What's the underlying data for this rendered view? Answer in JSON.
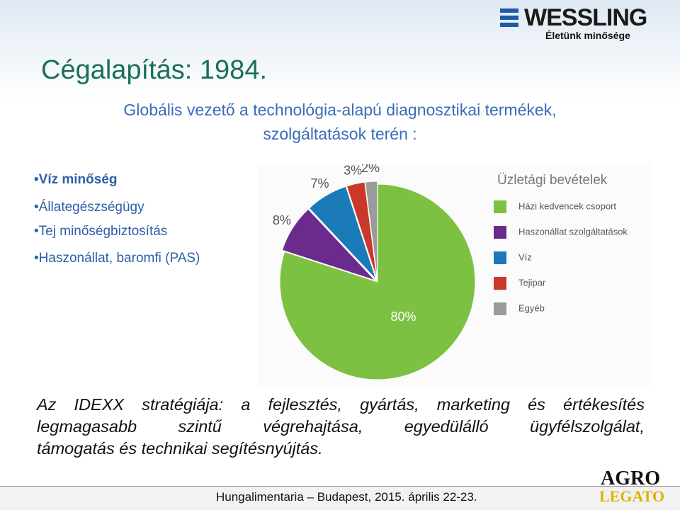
{
  "logo": {
    "brand": "WESSLING",
    "tagline": "Életünk minősége"
  },
  "header": {
    "title": "Cégalapítás: 1984.",
    "subtitle": [
      "Globális vezető a technológia-alapú diagnosztikai termékek,",
      "szolgáltatások terén :"
    ]
  },
  "bullets": [
    "•Víz minőség",
    "•Állategészségügy",
    "•Tej minőségbiztosítás",
    "•Haszonállat, baromfi (PAS)"
  ],
  "chart_data": {
    "type": "pie",
    "title": "Üzletági bevételek",
    "categories": [
      "Házi kedvencek csoport",
      "Haszonállat szolgáltatások",
      "Víz",
      "Tejipar",
      "Egyéb"
    ],
    "values": [
      80,
      8,
      7,
      3,
      2
    ],
    "value_labels": [
      "80%",
      "8%",
      "7%",
      "3%",
      "2%"
    ],
    "colors": [
      "#7dc142",
      "#6b2b8c",
      "#1b7bb8",
      "#c9382a",
      "#9b9b9b"
    ]
  },
  "strategy": [
    "Az IDEXX stratégiája: a fejlesztés, gyártás, marketing és értékesítés",
    "legmagasabb szintű végrehajtása, egyedülálló ügyfélszolgálat,",
    "támogatás és technikai segítésnyújtás."
  ],
  "footer": {
    "text": "Hungalimentaria – Budapest, 2015. április 22-23.",
    "logo": [
      "AGRO",
      "LEGATO"
    ]
  }
}
